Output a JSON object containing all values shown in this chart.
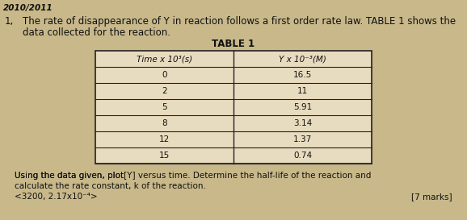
{
  "header_year": "2010/2011",
  "question_number": "1,",
  "question_text_line1": "The rate of disappearance of Y in reaction follows a first order rate law. TABLE 1 shows the",
  "question_text_line2": "data collected for the reaction.",
  "table_title": "TABLE 1",
  "col1_header": "Time x 10³(s)",
  "col2_header": "Y x 10⁻³(M)",
  "time_data": [
    "0",
    "2",
    "5",
    "8",
    "12",
    "15"
  ],
  "y_data": [
    "16.5",
    "11",
    "5.91",
    "3.14",
    "1.37",
    "0.74"
  ],
  "instruction_line1": "Using the data given, plot│[Y] versus time.│Determine the half-life of the reaction and",
  "instruction_line2": "calculate the rate constant, k of the reaction.",
  "answer_hint": "<3200, 2.17x10⁻⁴>",
  "marks": "[7 marks]",
  "background_color": "#c8b88a",
  "text_color": "#111111",
  "table_line_color": "#222222",
  "fs_main": 8.5,
  "fs_header": 7.5,
  "fs_small": 7.5
}
